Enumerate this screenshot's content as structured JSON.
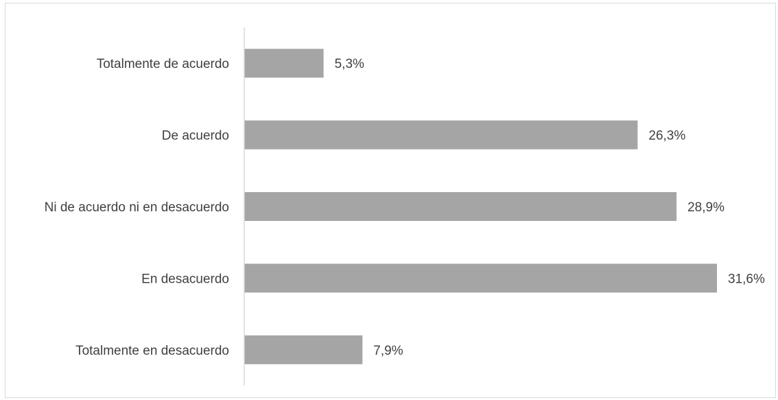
{
  "chart_data": {
    "type": "bar",
    "orientation": "horizontal",
    "categories": [
      "Totalmente de acuerdo",
      "De acuerdo",
      "Ni de acuerdo ni en desacuerdo",
      "En desacuerdo",
      "Totalmente en desacuerdo"
    ],
    "values": [
      5.3,
      26.3,
      28.9,
      31.6,
      7.9
    ],
    "value_labels": [
      "5,3%",
      "26,3%",
      "28,9%",
      "31,6%",
      "7,9%"
    ],
    "title": "",
    "xlabel": "",
    "ylabel": "",
    "xlim": [
      0,
      31.6
    ],
    "grid": false,
    "legend": "none",
    "bar_color": "#a5a5a5",
    "axis_color": "#d9d9d9",
    "text_color": "#404040"
  }
}
